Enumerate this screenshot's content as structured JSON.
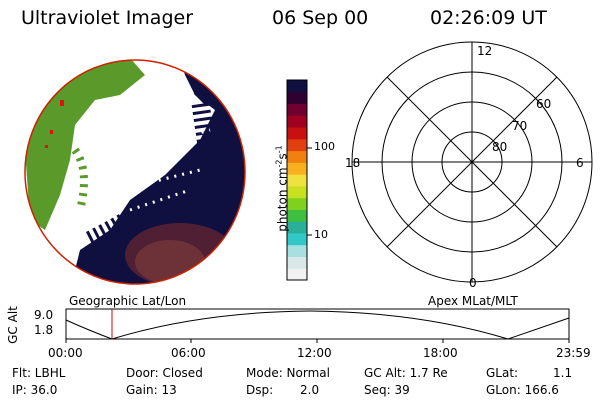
{
  "header": {
    "instrument": "Ultraviolet Imager",
    "date": "06 Sep 00",
    "time": "02:26:09 UT"
  },
  "colorbar": {
    "label": "photon cm",
    "label_exp1": "-2",
    "label_mid": "s",
    "label_exp2": "-1",
    "ticks": [
      "100",
      "10"
    ],
    "colors": [
      "#f2f2f2",
      "#d8e8e8",
      "#a6e0e0",
      "#33c7c7",
      "#2ab09a",
      "#3fbf3f",
      "#80d020",
      "#c8e020",
      "#f0e040",
      "#f8b020",
      "#f08010",
      "#e04010",
      "#c81010",
      "#a00020",
      "#700030",
      "#300030",
      "#101040"
    ]
  },
  "geo_label": "Geographic Lat/Lon",
  "apex_label": "Apex MLat/MLT",
  "polar": {
    "mlt_labels": {
      "top": "12",
      "left": "18",
      "right": "6",
      "bottom": "0"
    },
    "lat_labels": [
      "60",
      "70",
      "80"
    ]
  },
  "altitude_plot": {
    "ylabel": "GC Alt",
    "yticks": [
      "9.0",
      "1.8"
    ],
    "xticks": [
      "00:00",
      "06:00",
      "12:00",
      "18:00",
      "23:59"
    ],
    "current_time_marker": "02:26"
  },
  "info": {
    "filter": "Flt: LBHL",
    "door": "Door: Closed",
    "mode": "Mode: Normal",
    "gc_alt": "GC Alt: 1.7 Re",
    "glat": "GLat:",
    "glat_val": "1.1",
    "ip": "IP: 36.0",
    "gain": "Gain: 13",
    "dsp": "Dsp:",
    "dsp_val": "2.0",
    "seq": "Seq: 39",
    "glon": "GLon: 166.6"
  }
}
